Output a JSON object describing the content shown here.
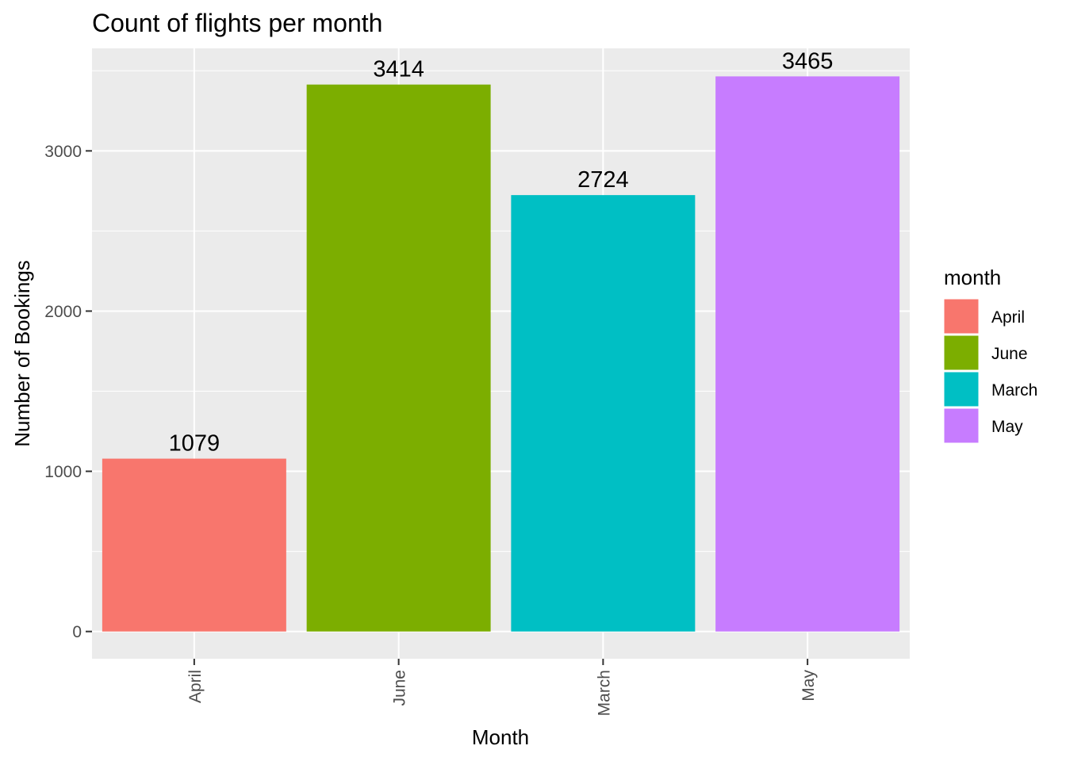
{
  "chart_data": {
    "type": "bar",
    "title": "Count of flights per month",
    "xlabel": "Month",
    "ylabel": "Number of Bookings",
    "categories": [
      "April",
      "June",
      "March",
      "May"
    ],
    "values": [
      1079,
      3414,
      2724,
      3465
    ],
    "colors": [
      "#F8766D",
      "#7CAE00",
      "#00BFC4",
      "#C77CFF"
    ],
    "ylim": [
      -170,
      3640
    ],
    "y_ticks": [
      0,
      1000,
      2000,
      3000
    ],
    "y_tick_labels": [
      "0",
      "1000",
      "2000",
      "3000"
    ],
    "grid": true,
    "panel_background": "#EBEBEB",
    "legend": {
      "title": "month",
      "position": "right",
      "entries": [
        "April",
        "June",
        "March",
        "May"
      ]
    }
  }
}
